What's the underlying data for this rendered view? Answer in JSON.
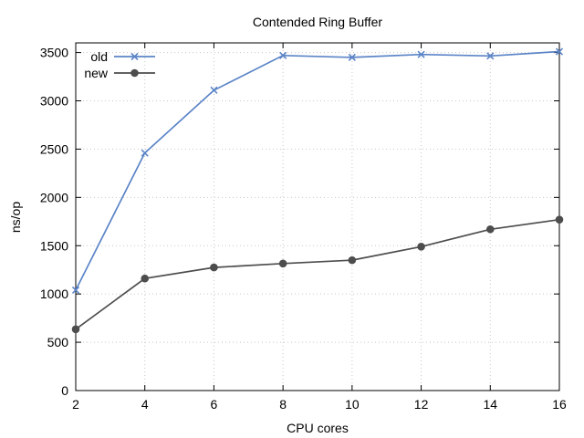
{
  "chart_data": {
    "type": "line",
    "title": "Contended Ring Buffer",
    "xlabel": "CPU cores",
    "ylabel": "ns/op",
    "xlim": [
      2,
      16
    ],
    "ylim": [
      0,
      3600
    ],
    "x_ticks": [
      2,
      4,
      6,
      8,
      10,
      12,
      14,
      16
    ],
    "y_ticks": [
      0,
      500,
      1000,
      1500,
      2000,
      2500,
      3000,
      3500
    ],
    "grid": true,
    "legend_position": "top-left",
    "x": [
      2,
      4,
      6,
      8,
      10,
      12,
      14,
      16
    ],
    "series": [
      {
        "name": "old",
        "color": "#5b84c7",
        "marker": "x",
        "values": [
          1040,
          2460,
          3110,
          3470,
          3450,
          3480,
          3465,
          3510
        ]
      },
      {
        "name": "new",
        "color": "#4d4d4d",
        "marker": "circle",
        "values": [
          635,
          1160,
          1275,
          1315,
          1350,
          1490,
          1670,
          1770
        ]
      }
    ]
  }
}
